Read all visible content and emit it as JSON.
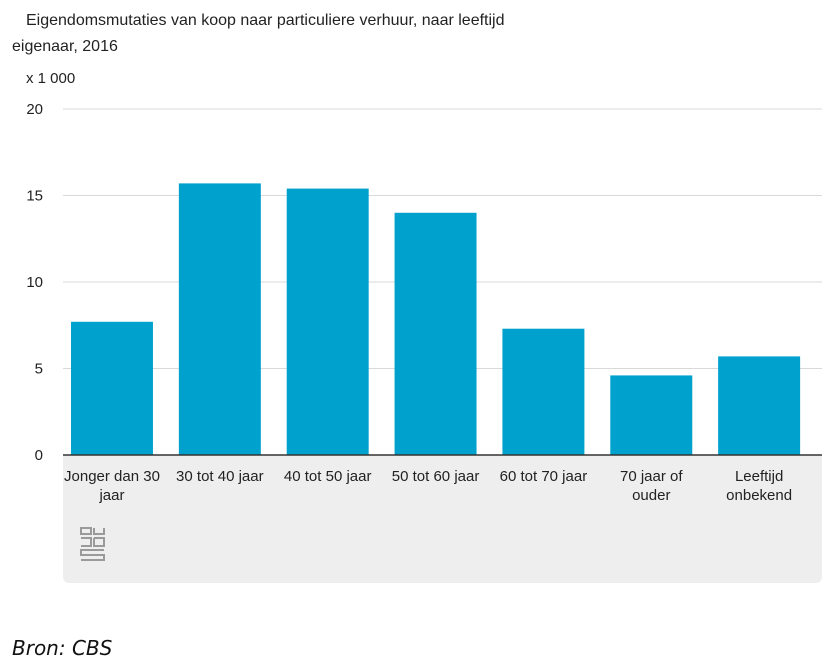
{
  "title": "Eigendomsmutaties van koop naar particuliere verhuur, naar leeftijd eigenaar, 2016",
  "unit_label": "x 1 000",
  "source": "Bron: CBS",
  "logo_icon": "cbs-logo-icon",
  "colors": {
    "bar": "#00a1cd",
    "grid": "#d9d9d9",
    "axis": "#333333",
    "panel": "#eeeeee"
  },
  "chart_data": {
    "type": "bar",
    "title": "Eigendomsmutaties van koop naar particuliere verhuur, naar leeftijd eigenaar, 2016",
    "ylabel": "x 1 000",
    "ylim": [
      0,
      20
    ],
    "yticks": [
      0,
      5,
      10,
      15,
      20
    ],
    "grid": true,
    "categories": [
      [
        "Jonger dan 30",
        "jaar"
      ],
      [
        "30 tot 40 jaar"
      ],
      [
        "40 tot 50 jaar"
      ],
      [
        "50 tot 60 jaar"
      ],
      [
        "60 tot 70 jaar"
      ],
      [
        "70 jaar of",
        "ouder"
      ],
      [
        "Leeftijd",
        "onbekend"
      ]
    ],
    "values": [
      7.7,
      15.7,
      15.4,
      14.0,
      7.3,
      4.6,
      5.7
    ]
  }
}
